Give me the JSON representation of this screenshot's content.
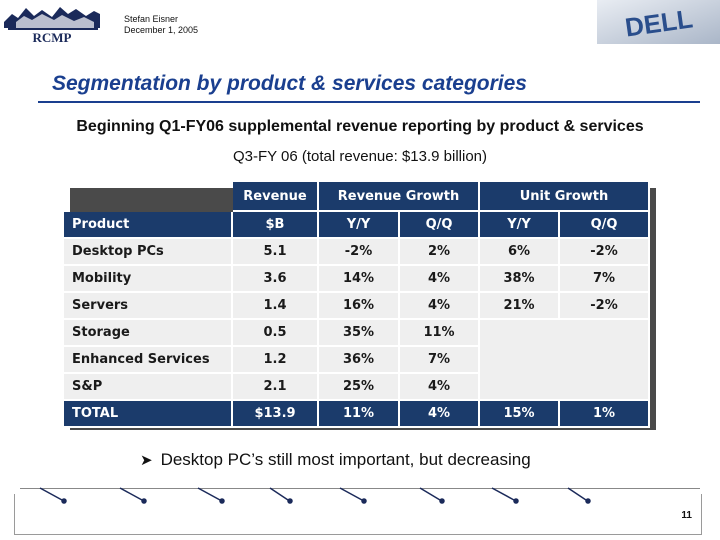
{
  "header": {
    "logo_text": "RCMP",
    "author": "Stefan Eisner",
    "date": "December 1, 2005",
    "company_logo_text": "DELL"
  },
  "slide": {
    "title": "Segmentation by product & services categories",
    "subtitle": "Beginning Q1-FY06 supplemental revenue reporting by product & services",
    "subtitle2": "Q3-FY 06 (total revenue: $13.9 billion)",
    "bullet_icon": "arrow-bullet-icon",
    "bullet": "Desktop PC’s still most important, but decreasing",
    "page_number": "11"
  },
  "table": {
    "group_headers": [
      "Revenue",
      "Revenue Growth",
      "Unit Growth"
    ],
    "columns": [
      "Product",
      "$B",
      "Y/Y",
      "Q/Q",
      "Y/Y",
      "Q/Q"
    ],
    "rows": [
      [
        "Desktop PCs",
        "5.1",
        "-2%",
        "2%",
        "6%",
        "-2%"
      ],
      [
        "Mobility",
        "3.6",
        "14%",
        "4%",
        "38%",
        "7%"
      ],
      [
        "Servers",
        "1.4",
        "16%",
        "4%",
        "21%",
        "-2%"
      ],
      [
        "Storage",
        "0.5",
        "35%",
        "11%",
        "",
        ""
      ],
      [
        "Enhanced Services",
        "1.2",
        "36%",
        "7%",
        "",
        ""
      ],
      [
        "S&P",
        "2.1",
        "25%",
        "4%",
        "",
        ""
      ]
    ],
    "total": [
      "TOTAL",
      "$13.9",
      "11%",
      "4%",
      "15%",
      "1%"
    ]
  },
  "colors": {
    "title": "#1a3f8f",
    "table_header": "#1b3b6b",
    "table_cell": "#efefef"
  }
}
